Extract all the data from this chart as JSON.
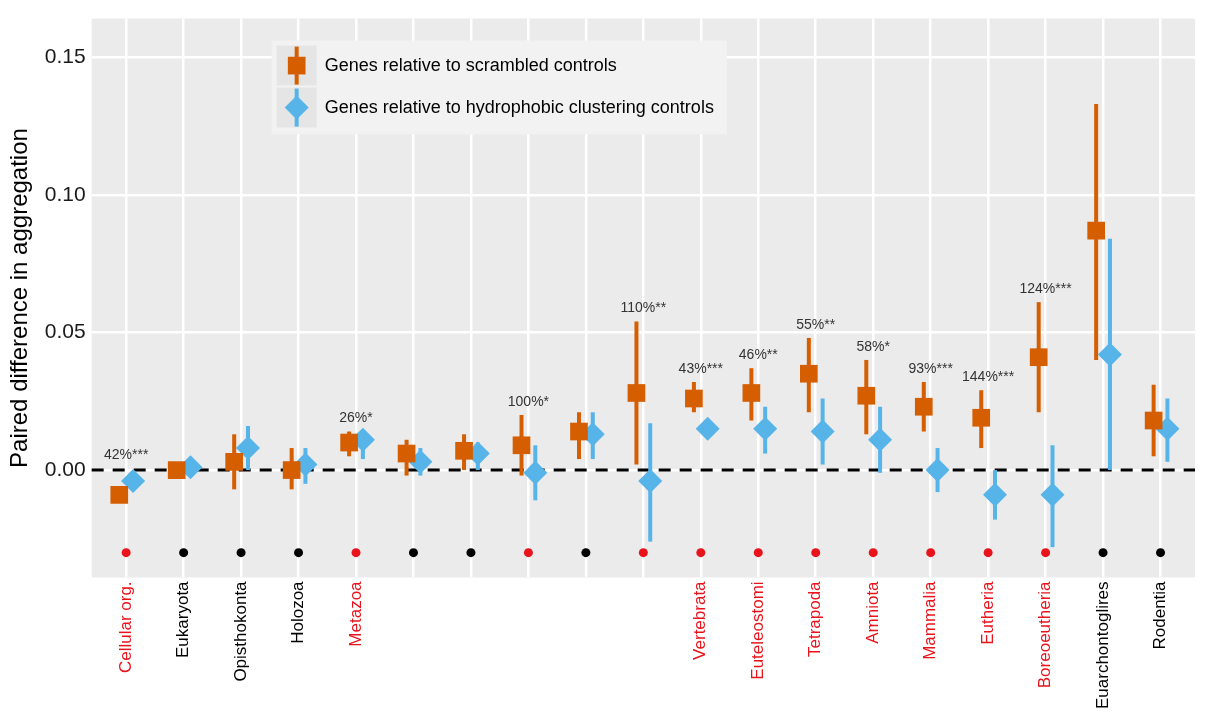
{
  "chart_data": {
    "type": "scatter",
    "ylabel": "Paired difference in aggregation",
    "categories": [
      "Cellular org.",
      "Eukaryota",
      "Opisthokonta",
      "Holozoa",
      "Metazoa",
      null,
      null,
      null,
      null,
      null,
      "Vertebrata",
      "Euteleostomi",
      "Tetrapoda",
      "Amniota",
      "Mammalia",
      "Eutheria",
      "Boreoeutheria",
      "Euarchontoglires",
      "Rodentia"
    ],
    "ylim": [
      -0.039,
      0.164
    ],
    "yticks": [
      {
        "value": 0,
        "label": "0.00"
      },
      {
        "value": 0.05,
        "label": "0.05"
      },
      {
        "value": 0.1,
        "label": "0.10"
      },
      {
        "value": 0.15,
        "label": "0.15"
      }
    ],
    "grid": true,
    "legend": "top left",
    "series": [
      {
        "name": "Genes relative to scrambled controls",
        "marker": "square",
        "color": "#d55e00",
        "values": [
          -0.009,
          0.0,
          0.003,
          0.0,
          0.01,
          0.006,
          0.007,
          0.009,
          0.014,
          0.028,
          0.026,
          0.028,
          0.035,
          0.027,
          0.023,
          0.019,
          0.041,
          0.087,
          0.018
        ],
        "errors": [
          null,
          null,
          [
            -0.007,
            0.013
          ],
          [
            -0.007,
            0.008
          ],
          [
            0.005,
            0.014
          ],
          [
            -0.002,
            0.011
          ],
          [
            0.0,
            0.013
          ],
          [
            -0.002,
            0.02
          ],
          [
            0.004,
            0.021
          ],
          [
            0.002,
            0.054
          ],
          [
            0.021,
            0.032
          ],
          [
            0.018,
            0.037
          ],
          [
            0.021,
            0.048
          ],
          [
            0.013,
            0.04
          ],
          [
            0.014,
            0.032
          ],
          [
            0.008,
            0.029
          ],
          [
            0.021,
            0.061
          ],
          [
            0.04,
            0.133
          ],
          [
            0.005,
            0.031
          ]
        ]
      },
      {
        "name": "Genes relative to hydrophobic clustering controls",
        "marker": "diamond",
        "color": "#56b4e9",
        "values": [
          -0.004,
          0.001,
          0.008,
          0.002,
          0.011,
          0.003,
          0.006,
          -0.001,
          0.013,
          -0.004,
          0.015,
          0.015,
          0.014,
          0.011,
          0.0,
          -0.009,
          -0.009,
          0.042,
          0.015
        ],
        "errors": [
          null,
          null,
          [
            0.0,
            0.016
          ],
          [
            -0.005,
            0.008
          ],
          [
            0.004,
            0.014
          ],
          [
            -0.002,
            0.008
          ],
          [
            0.0,
            0.01
          ],
          [
            -0.011,
            0.009
          ],
          [
            0.004,
            0.021
          ],
          [
            -0.026,
            0.017
          ],
          null,
          [
            0.006,
            0.023
          ],
          [
            0.002,
            0.026
          ],
          [
            -0.001,
            0.023
          ],
          [
            -0.008,
            0.008
          ],
          [
            -0.018,
            0.0
          ],
          [
            -0.028,
            0.009
          ],
          [
            0.0,
            0.084
          ],
          [
            0.003,
            0.026
          ]
        ]
      },
      {
        "marker": "circle",
        "values": [
          -0.03,
          -0.03,
          -0.03,
          -0.03,
          -0.03,
          -0.03,
          -0.03,
          -0.03,
          -0.03,
          -0.03,
          -0.03,
          -0.03,
          -0.03,
          -0.03,
          -0.03,
          -0.03,
          -0.03,
          -0.03,
          -0.03
        ],
        "colors": [
          "#e8131b",
          "#000000",
          "#000000",
          "#000000",
          "#e8131b",
          "#000000",
          "#000000",
          "#e8131b",
          "#000000",
          "#e8131b",
          "#e8131b",
          "#e8131b",
          "#e8131b",
          "#e8131b",
          "#e8131b",
          "#e8131b",
          "#e8131b",
          "#000000",
          "#000000"
        ]
      }
    ],
    "ref_lines": [
      {
        "axis": "y",
        "value": 0,
        "color": "#000000",
        "line_style": "dashed"
      }
    ],
    "annotations": [
      {
        "text": "42%***",
        "x": "Cellular org.",
        "y": -0.009
      },
      {
        "text": "26%*",
        "x": "Metazoa",
        "y": 0.014
      },
      {
        "text": "100%*",
        "y": 0.02
      },
      {
        "text": "110%**",
        "y": 0.054
      },
      {
        "text": "43%***",
        "x": "Vertebrata",
        "y": 0.032
      },
      {
        "text": "46%**",
        "x": "Euteleostomi",
        "y": 0.037
      },
      {
        "text": "55%**",
        "x": "Tetrapoda",
        "y": 0.048
      },
      {
        "text": "58%*",
        "x": "Amniota",
        "y": 0.04
      },
      {
        "text": "93%***",
        "x": "Mammalia",
        "y": 0.032
      },
      {
        "text": "144%***",
        "x": "Eutheria",
        "y": 0.029
      },
      {
        "text": "124%***",
        "x": "Boreoeutheria",
        "y": 0.061
      }
    ]
  }
}
